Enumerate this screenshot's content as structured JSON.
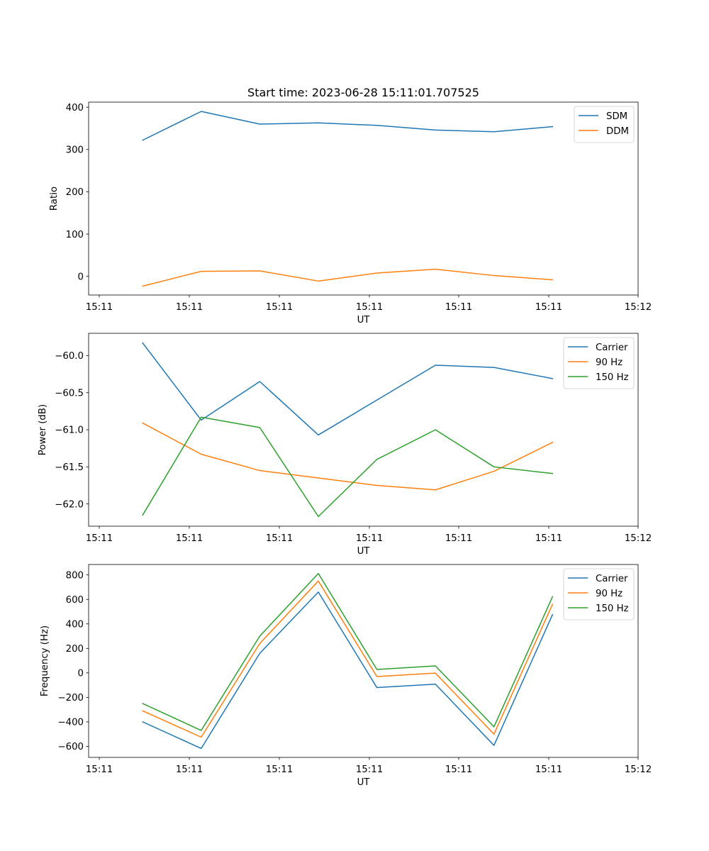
{
  "figure": {
    "title": "Start time: 2023-06-28 15:11:01.707525"
  },
  "chart_data": [
    {
      "type": "line",
      "xlabel": "UT",
      "ylabel": "Ratio",
      "x_tick_labels": [
        "15:11",
        "15:11",
        "15:11",
        "15:11",
        "15:11",
        "15:11",
        "15:12"
      ],
      "y_ticks": [
        0,
        100,
        200,
        300,
        400
      ],
      "ylim": [
        -44,
        412
      ],
      "x": [
        0.5,
        1.15,
        1.8,
        2.45,
        3.1,
        3.75,
        4.4,
        5.05
      ],
      "xlim": [
        -0.1,
        6.0
      ],
      "legend": "top-right",
      "grid": false,
      "series": [
        {
          "name": "SDM",
          "color": "#1f77b4",
          "values": [
            322,
            390,
            360,
            363,
            357,
            346,
            342,
            354
          ]
        },
        {
          "name": "DDM",
          "color": "#ff7f0e",
          "values": [
            -23,
            12,
            13,
            -11,
            8,
            17,
            2,
            -8
          ]
        }
      ]
    },
    {
      "type": "line",
      "xlabel": "UT",
      "ylabel": "Power (dB)",
      "x_tick_labels": [
        "15:11",
        "15:11",
        "15:11",
        "15:11",
        "15:11",
        "15:11",
        "15:12"
      ],
      "y_ticks": [
        -62.0,
        -61.5,
        -61.0,
        -60.5,
        -60.0
      ],
      "y_tick_labels": [
        "−62.0",
        "−61.5",
        "−61.0",
        "−60.5",
        "−60.0"
      ],
      "ylim": [
        -62.3,
        -59.7
      ],
      "x": [
        0.5,
        1.15,
        1.8,
        2.45,
        3.1,
        3.75,
        4.4,
        5.05
      ],
      "xlim": [
        -0.1,
        6.0
      ],
      "legend": "top-right",
      "grid": false,
      "series": [
        {
          "name": "Carrier",
          "color": "#1f77b4",
          "values": [
            -59.83,
            -60.87,
            -60.35,
            -61.07,
            -60.6,
            -60.13,
            -60.16,
            -60.31
          ]
        },
        {
          "name": "90 Hz",
          "color": "#ff7f0e",
          "values": [
            -60.91,
            -61.33,
            -61.55,
            -61.65,
            -61.75,
            -61.81,
            -61.56,
            -61.17
          ]
        },
        {
          "name": "150 Hz",
          "color": "#2ca02c",
          "values": [
            -62.15,
            -60.83,
            -60.97,
            -62.17,
            -61.4,
            -61.0,
            -61.5,
            -61.59
          ]
        }
      ]
    },
    {
      "type": "line",
      "xlabel": "UT",
      "ylabel": "Frequency (Hz)",
      "x_tick_labels": [
        "15:11",
        "15:11",
        "15:11",
        "15:11",
        "15:11",
        "15:11",
        "15:12"
      ],
      "y_ticks": [
        -600,
        -400,
        -200,
        0,
        200,
        400,
        600,
        800
      ],
      "y_tick_labels": [
        "−600",
        "−400",
        "−200",
        "0",
        "200",
        "400",
        "600",
        "800"
      ],
      "ylim": [
        -690,
        885
      ],
      "x": [
        0.5,
        1.15,
        1.8,
        2.45,
        3.1,
        3.75,
        4.4,
        5.05
      ],
      "xlim": [
        -0.1,
        6.0
      ],
      "legend": "top-right",
      "grid": false,
      "series": [
        {
          "name": "Carrier",
          "color": "#1f77b4",
          "values": [
            -400,
            -617,
            160,
            660,
            -120,
            -92,
            -592,
            476
          ]
        },
        {
          "name": "90 Hz",
          "color": "#ff7f0e",
          "values": [
            -310,
            -525,
            240,
            750,
            -30,
            -2,
            -500,
            560
          ]
        },
        {
          "name": "150 Hz",
          "color": "#2ca02c",
          "values": [
            -250,
            -470,
            300,
            812,
            28,
            57,
            -440,
            622
          ]
        }
      ]
    }
  ]
}
